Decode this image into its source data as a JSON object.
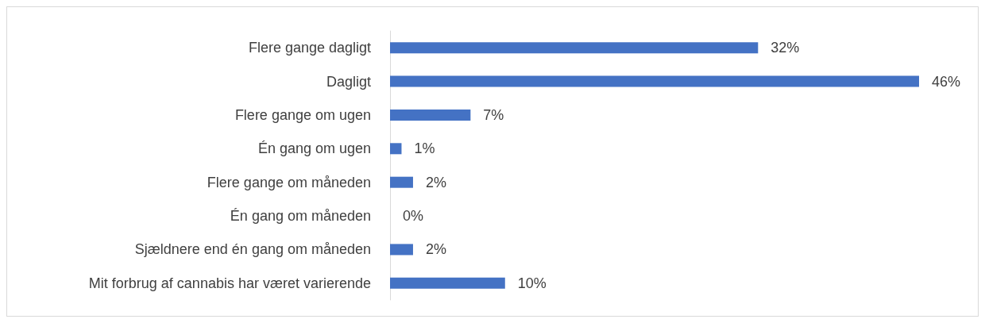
{
  "chart_data": {
    "type": "bar",
    "orientation": "horizontal",
    "categories": [
      "Flere gange dagligt",
      "Dagligt",
      "Flere gange om ugen",
      "Én gang om ugen",
      "Flere gange om måneden",
      "Én gang om måneden",
      "Sjældnere end én gang om måneden",
      "Mit forbrug af cannabis har været varierende"
    ],
    "values": [
      32,
      46,
      7,
      1,
      2,
      0,
      2,
      10
    ],
    "value_labels": [
      "32%",
      "46%",
      "7%",
      "1%",
      "2%",
      "0%",
      "2%",
      "10%"
    ],
    "color": "#4472c4"
  }
}
